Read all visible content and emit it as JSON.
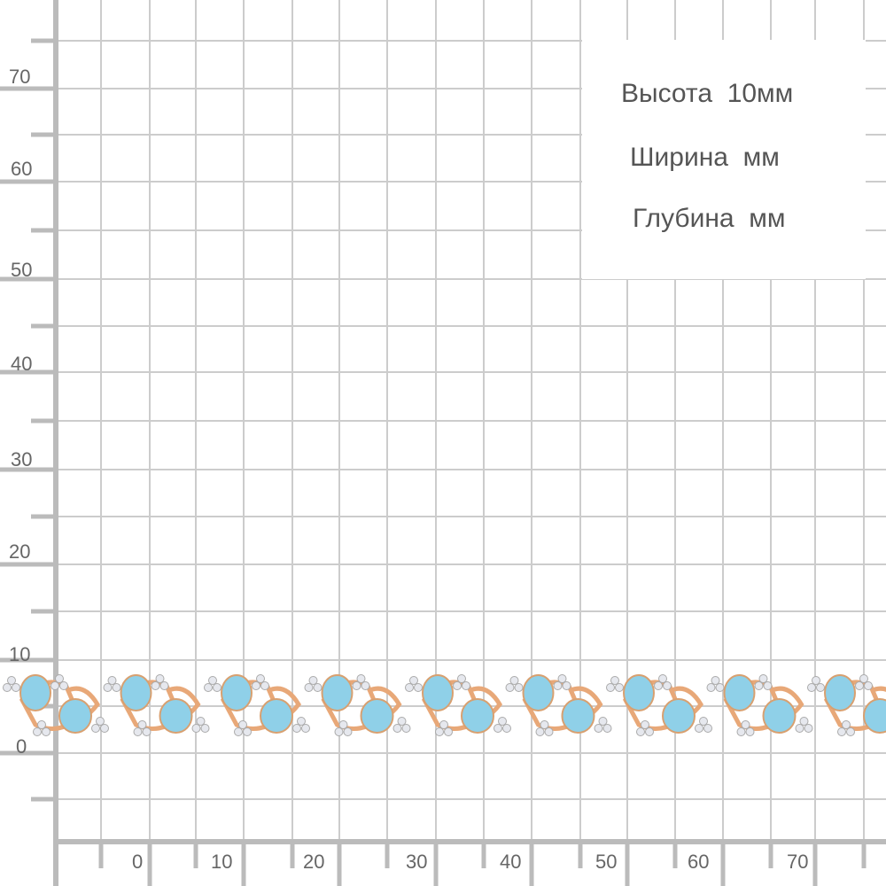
{
  "y_axis_labels": [
    "70",
    "60",
    "50",
    "40",
    "30",
    "20",
    "10",
    "0"
  ],
  "x_axis_labels": [
    "0",
    "10",
    "20",
    "30",
    "40",
    "50",
    "60",
    "70"
  ],
  "dimensions": {
    "height": "Высота  10мм",
    "width": "Ширина  мм",
    "depth": "Глубина  мм"
  },
  "colors": {
    "grid": "#cccccc",
    "axis": "#bbbbbb",
    "gold": "#e8a878",
    "stone": "#8fd0e8",
    "label": "#666666"
  }
}
